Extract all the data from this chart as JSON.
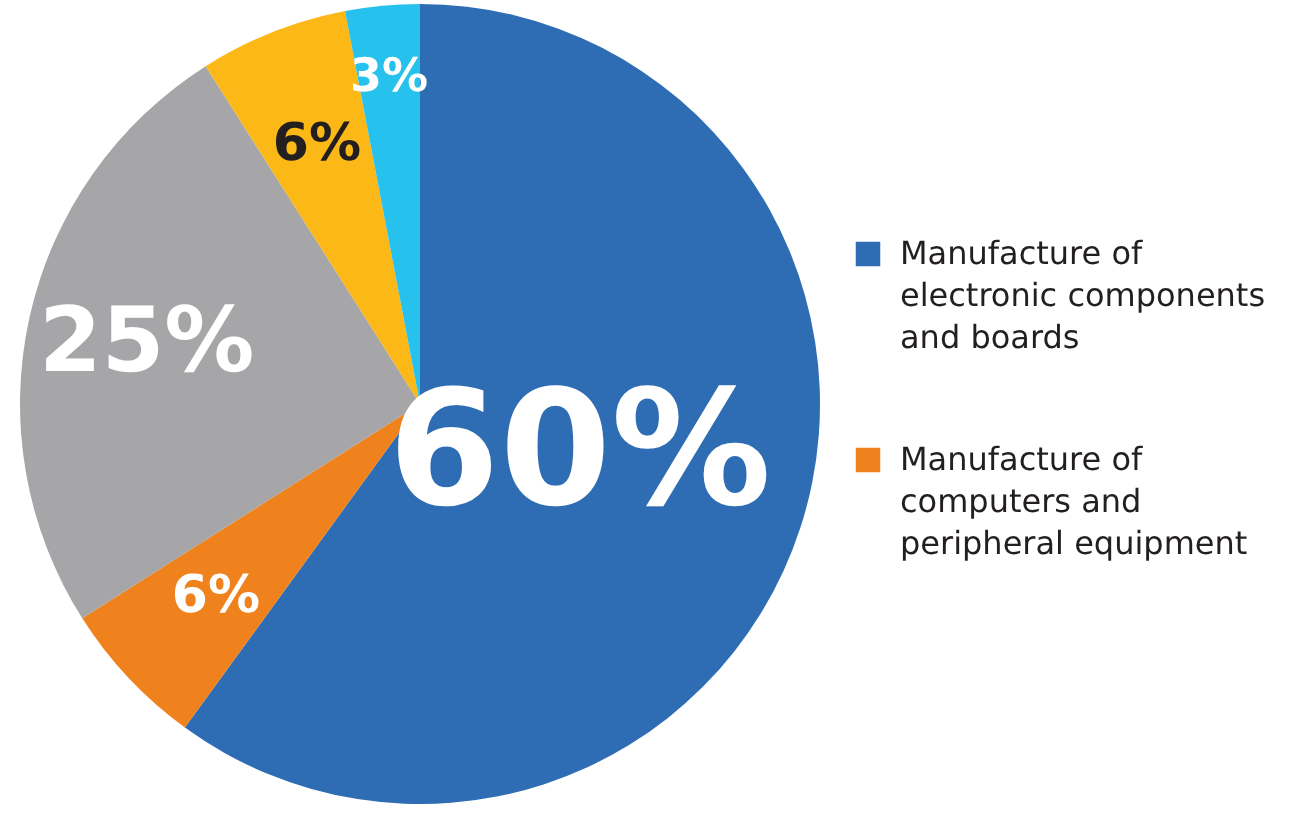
{
  "chart_data": {
    "type": "pie",
    "categories": [
      "Manufacture of electronic components and boards",
      "Manufacture of computers and peripheral equipment",
      null,
      null,
      null
    ],
    "values": [
      60,
      6,
      25,
      6,
      3
    ],
    "colors": [
      "#2e6db4",
      "#f0821e",
      "#a6a6a8",
      "#fbb817",
      "#27c1ee"
    ],
    "data_labels": true,
    "value_labels": [
      "60%",
      "6%",
      "25%",
      "6%",
      "3%"
    ],
    "legend": "right"
  }
}
